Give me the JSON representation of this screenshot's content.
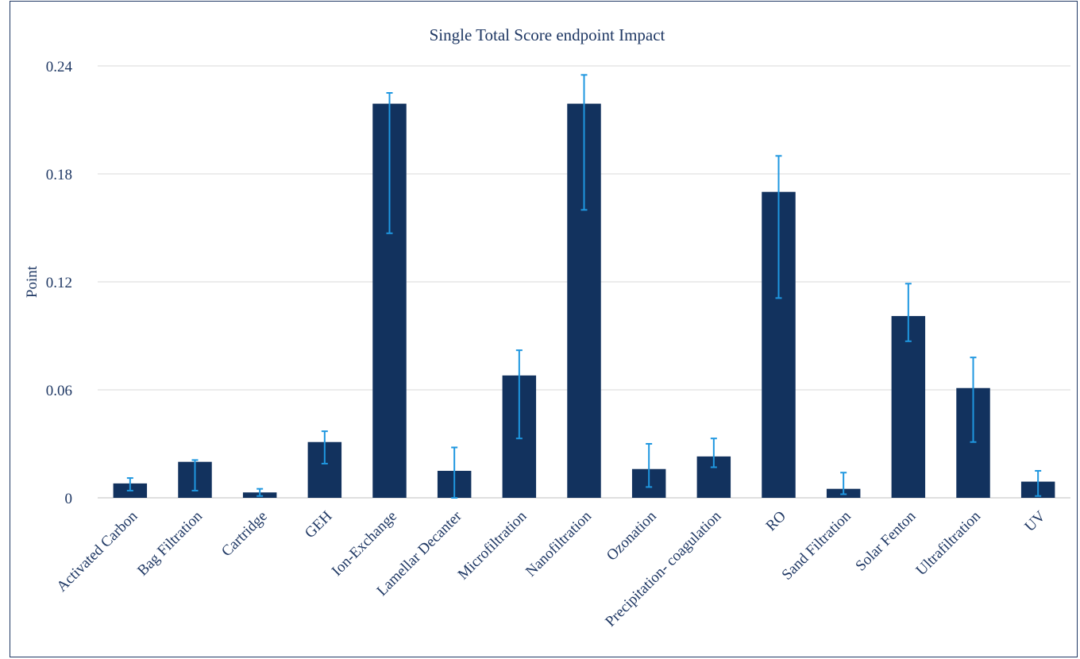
{
  "chart_data": {
    "type": "bar",
    "title": "Single Total Score endpoint Impact",
    "xlabel": "",
    "ylabel": "Point",
    "ylim": [
      0,
      0.24
    ],
    "yticks": [
      0,
      0.06,
      0.12,
      0.18,
      0.24
    ],
    "ytick_labels": [
      "0",
      "0.06",
      "0.12",
      "0.18",
      "0.24"
    ],
    "grid": true,
    "legend": "none",
    "categories": [
      "Activated Carbon",
      "Bag Filtration",
      "Cartridge",
      "GEH",
      "Ion-Exchange",
      "Lamellar Decanter",
      "Microfiltration",
      "Nanofiltration",
      "Ozonation",
      "Precipitation- coagulation",
      "RO",
      "Sand Filtration",
      "Solar  Fenton",
      "Ultrafiltration",
      "UV"
    ],
    "values": [
      0.008,
      0.02,
      0.003,
      0.031,
      0.219,
      0.015,
      0.068,
      0.219,
      0.016,
      0.023,
      0.17,
      0.005,
      0.101,
      0.061,
      0.009
    ],
    "error_low": [
      0.004,
      0.004,
      0.001,
      0.019,
      0.147,
      0.0,
      0.033,
      0.16,
      0.006,
      0.017,
      0.111,
      0.002,
      0.087,
      0.031,
      0.001
    ],
    "error_high": [
      0.011,
      0.021,
      0.005,
      0.037,
      0.225,
      0.028,
      0.082,
      0.235,
      0.03,
      0.033,
      0.19,
      0.014,
      0.119,
      0.078,
      0.015
    ],
    "colors": {
      "bar": "#12325e",
      "error_bar": "#1f97e0",
      "text": "#1f3864",
      "grid": "#d9d9d9",
      "axis": "#bfbfbf",
      "frame": "#1f3864"
    }
  }
}
